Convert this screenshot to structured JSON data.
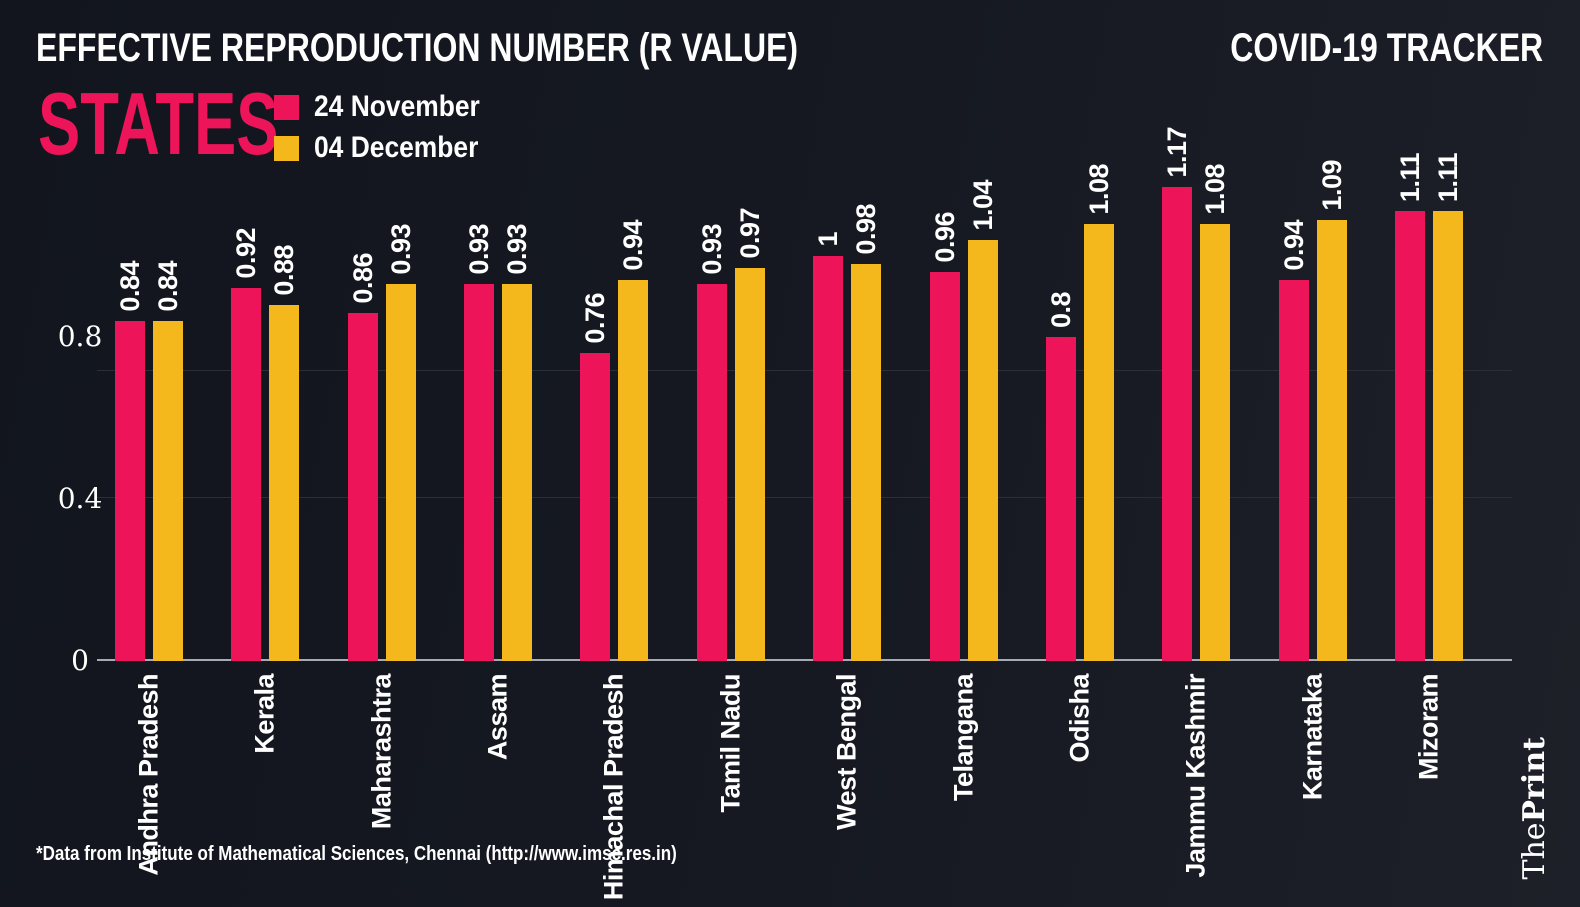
{
  "header": {
    "title": "EFFECTIVE REPRODUCTION NUMBER (R VALUE)",
    "tracker": "COVID-19 TRACKER",
    "section": "STATES"
  },
  "legend": [
    {
      "label": "24 November",
      "color": "#ED1459"
    },
    {
      "label": "04 December",
      "color": "#F4B71C"
    }
  ],
  "chart_data": {
    "type": "bar",
    "title": "EFFECTIVE REPRODUCTION NUMBER (R VALUE) - STATES",
    "categories": [
      "Andhra Pradesh",
      "Kerala",
      "Maharashtra",
      "Assam",
      "Himachal Pradesh",
      "Tamil Nadu",
      "West Bengal",
      "Telangana",
      "Odisha",
      "Jammu Kashmir",
      "Karnataka",
      "Mizoram"
    ],
    "series": [
      {
        "name": "24 November",
        "color": "#ED1459",
        "values": [
          0.84,
          0.92,
          0.86,
          0.93,
          0.76,
          0.93,
          1,
          0.96,
          0.8,
          1.17,
          0.94,
          1.11
        ]
      },
      {
        "name": "04 December",
        "color": "#F4B71C",
        "values": [
          0.84,
          0.88,
          0.93,
          0.93,
          0.94,
          0.97,
          0.98,
          1.04,
          1.08,
          1.08,
          1.09,
          1.11
        ]
      }
    ],
    "xlabel": "",
    "ylabel": "",
    "yticks": [
      0,
      0.4,
      0.8
    ],
    "ylim": [
      0,
      1.2
    ],
    "grid": "faint-horizontal",
    "legend_position": "top-left",
    "bar_labels": "rotated-90-above-bars"
  },
  "footer": {
    "source": "*Data from Institute of Mathematical Sciences, Chennai (http://www.imsc.res.in)"
  },
  "branding": {
    "logo_the": "The",
    "logo_print": "Print"
  },
  "colors": {
    "background": "#151821",
    "pink": "#ED1459",
    "yellow": "#F4B71C",
    "axis": "#A6ABB3",
    "text": "#FFFFFF"
  }
}
